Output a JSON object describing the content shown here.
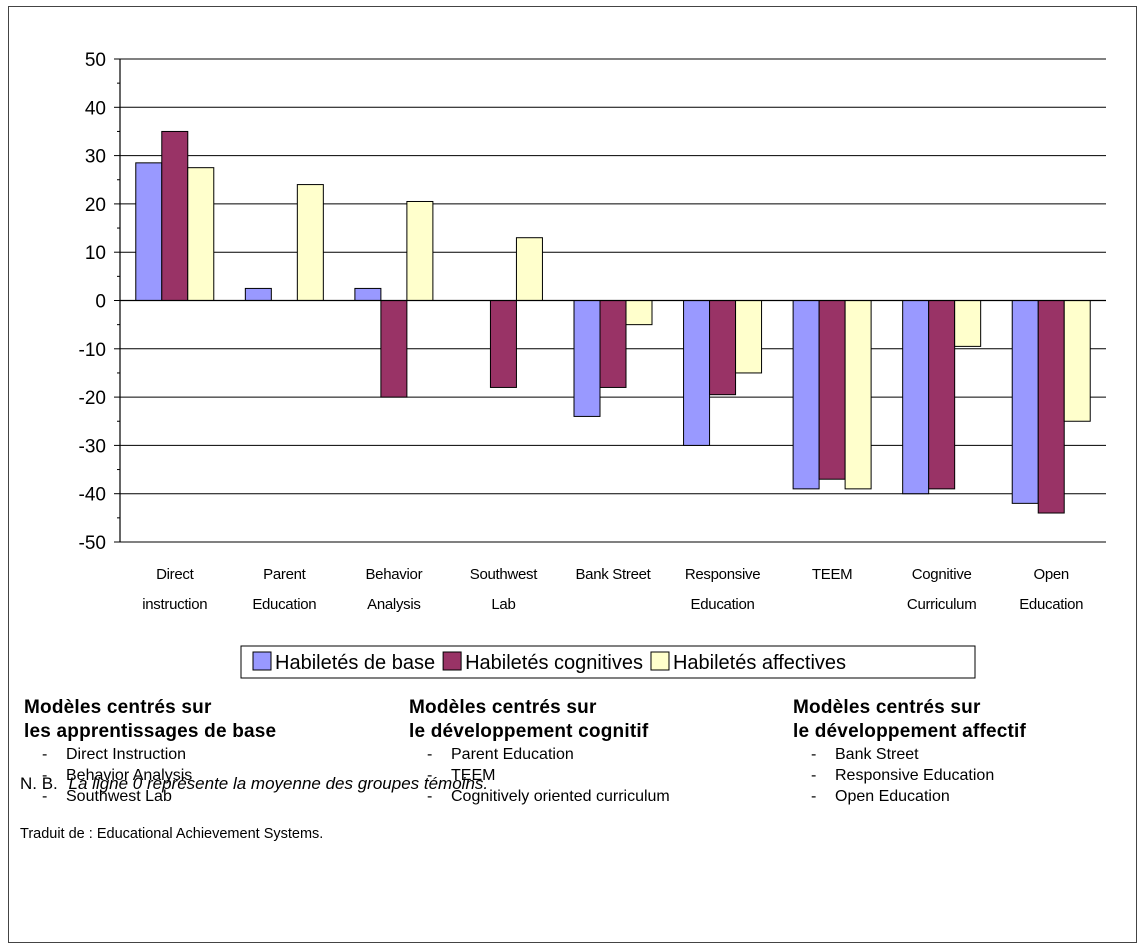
{
  "chart_data": {
    "type": "bar",
    "categories": [
      [
        "Direct",
        "instruction"
      ],
      [
        "Parent",
        "Education"
      ],
      [
        "Behavior",
        "Analysis"
      ],
      [
        "Southwest",
        "Lab"
      ],
      [
        "Bank Street"
      ],
      [
        "Responsive",
        "Education"
      ],
      [
        "TEEM"
      ],
      [
        "Cognitive",
        "Curriculum"
      ],
      [
        "Open",
        "Education"
      ]
    ],
    "series": [
      {
        "name": "Habiletés de base",
        "color": "#9999ff",
        "values": [
          28.5,
          2.5,
          2.5,
          0,
          -24,
          -30,
          -39,
          -40,
          -42
        ]
      },
      {
        "name": "Habiletés cognitives",
        "color": "#993366",
        "values": [
          35,
          0,
          -20,
          -18,
          -18,
          -19.5,
          -37,
          -39,
          -44
        ]
      },
      {
        "name": "Habiletés affectives",
        "color": "#ffffcc",
        "values": [
          27.5,
          24,
          20.5,
          13,
          -5,
          -15,
          -39,
          -9.5,
          -25
        ]
      }
    ],
    "ylim": [
      -50,
      50
    ],
    "yticks": [
      50,
      40,
      30,
      20,
      10,
      0,
      -10,
      -20,
      -30,
      -40,
      -50
    ],
    "grid": true,
    "legend_position": "bottom",
    "title": "",
    "xlabel": "",
    "ylabel": ""
  },
  "models": [
    {
      "title_line1": "Modèles centrés sur",
      "title_line2": "les apprentissages de base",
      "items": [
        "Direct Instruction",
        "Behavior Analysis",
        "Southwest Lab"
      ]
    },
    {
      "title_line1": "Modèles centrés sur",
      "title_line2": "le développement cognitif",
      "items": [
        "Parent Education",
        "TEEM",
        "Cognitively oriented curriculum"
      ]
    },
    {
      "title_line1": "Modèles centrés sur",
      "title_line2": "le développement affectif",
      "items": [
        "Bank Street",
        "Responsive Education",
        "Open Education"
      ]
    }
  ],
  "note": {
    "prefix": "N. B.",
    "text": "La ligne 0 représente la moyenne des groupes témoins."
  },
  "source": "Traduit de : Educational Achievement Systems."
}
